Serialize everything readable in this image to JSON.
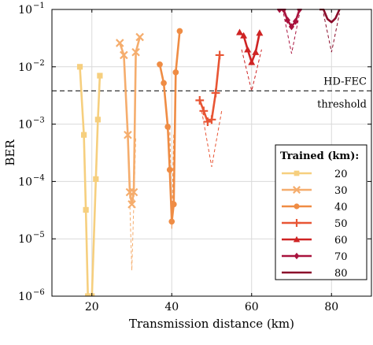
{
  "chart_data": {
    "type": "line",
    "xlabel": "Transmission distance (km)",
    "ylabel": "BER",
    "xlim": [
      10,
      90
    ],
    "ylim": [
      1e-06,
      0.1
    ],
    "yscale": "log",
    "grid": true,
    "x_ticks": [
      {
        "value": 20,
        "label": "20"
      },
      {
        "value": 40,
        "label": "40"
      },
      {
        "value": 60,
        "label": "60"
      },
      {
        "value": 80,
        "label": "80"
      }
    ],
    "y_ticks": [
      {
        "value": 1e-06,
        "label": "10",
        "exp": "−6"
      },
      {
        "value": 1e-05,
        "label": "10",
        "exp": "−5"
      },
      {
        "value": 0.0001,
        "label": "10",
        "exp": "−4"
      },
      {
        "value": 0.001,
        "label": "10",
        "exp": "−3"
      },
      {
        "value": 0.01,
        "label": "10",
        "exp": "−2"
      },
      {
        "value": 0.1,
        "label": "10",
        "exp": "−1"
      }
    ],
    "threshold": {
      "value": 0.0038,
      "label_top": "HD-FEC",
      "label_bottom": "threshold"
    },
    "legend": {
      "title": "Trained (km):",
      "placement": "bottom-right"
    },
    "series": [
      {
        "name": "20",
        "color": "#f6cf7e",
        "marker": "square",
        "x": [
          17,
          18,
          18.5,
          19,
          20,
          21,
          21.5,
          22
        ],
        "y": [
          0.01,
          0.00065,
          3.2e-05,
          1e-06,
          1e-06,
          0.00011,
          0.0012,
          0.007
        ],
        "dashed_x": [
          19.5,
          20.5
        ],
        "dashed_y": [
          1e-06,
          1e-06
        ]
      },
      {
        "name": "30",
        "color": "#f5ad6d",
        "marker": "x",
        "x": [
          27,
          28,
          29,
          29.5,
          30,
          30.5,
          31,
          32
        ],
        "y": [
          0.026,
          0.016,
          0.00065,
          6.5e-05,
          4e-05,
          6.5e-05,
          0.018,
          0.033
        ],
        "dashed_x": [
          29,
          30,
          31
        ],
        "dashed_y": [
          0.00065,
          2.8e-06,
          0.0006
        ]
      },
      {
        "name": "40",
        "color": "#ef8c44",
        "marker": "circle",
        "x": [
          37,
          38,
          39,
          39.5,
          40,
          40.5,
          41,
          42
        ],
        "y": [
          0.011,
          0.0052,
          0.0009,
          0.00016,
          2e-05,
          4e-05,
          0.008,
          0.042
        ],
        "dashed_x": [
          39.5,
          40,
          40.5
        ],
        "dashed_y": [
          0.0009,
          1.5e-05,
          0.0007
        ]
      },
      {
        "name": "50",
        "color": "#e85534",
        "marker": "plus",
        "x": [
          47,
          48,
          49,
          50,
          51,
          52
        ],
        "y": [
          0.0026,
          0.0017,
          0.0011,
          0.0012,
          0.0035,
          0.016
        ],
        "dashed_x": [
          47.5,
          50,
          52.5
        ],
        "dashed_y": [
          0.0017,
          0.00018,
          0.0017
        ]
      },
      {
        "name": "60",
        "color": "#cf2424",
        "marker": "triangle",
        "x": [
          57,
          58,
          59,
          60,
          61,
          62
        ],
        "y": [
          0.04,
          0.035,
          0.02,
          0.012,
          0.018,
          0.039
        ],
        "dashed_x": [
          57.5,
          60,
          62.5
        ],
        "dashed_y": [
          0.02,
          0.0038,
          0.02
        ]
      },
      {
        "name": "70",
        "color": "#a9123d",
        "marker": "diamond",
        "x": [
          67,
          68,
          69,
          70,
          71,
          72
        ],
        "y": [
          0.1,
          0.1,
          0.065,
          0.05,
          0.062,
          0.1
        ],
        "dashed_x": [
          68,
          70,
          72
        ],
        "dashed_y": [
          0.085,
          0.017,
          0.085
        ]
      },
      {
        "name": "80",
        "color": "#8a0b2a",
        "marker": "none",
        "x": [
          77,
          78,
          79,
          80,
          81,
          82
        ],
        "y": [
          0.1,
          0.1,
          0.068,
          0.06,
          0.07,
          0.1
        ],
        "dashed_x": [
          78,
          80,
          82
        ],
        "dashed_y": [
          0.085,
          0.018,
          0.085
        ]
      }
    ]
  }
}
